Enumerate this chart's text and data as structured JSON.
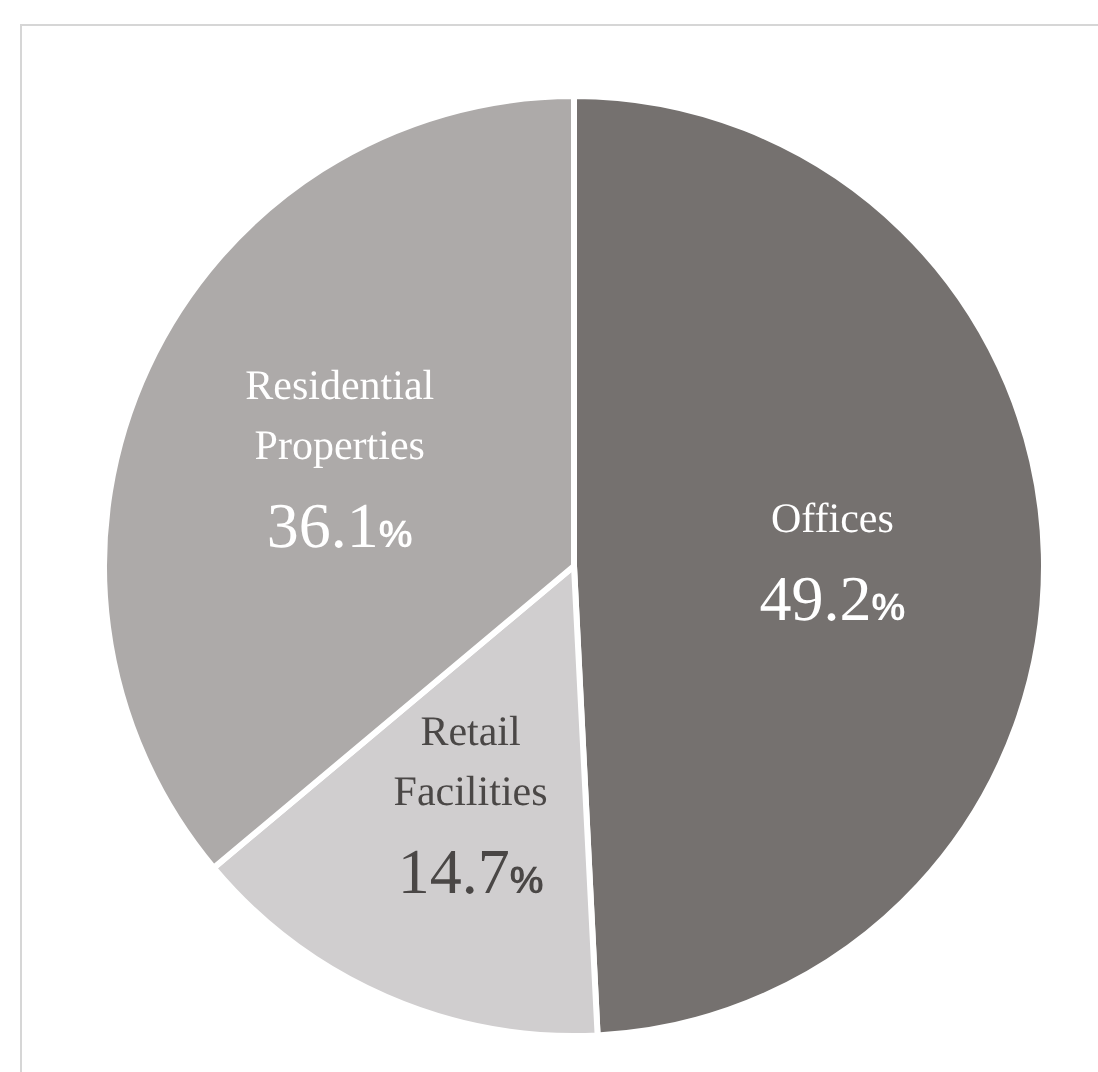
{
  "chart_data": {
    "type": "pie",
    "categories": [
      "Offices",
      "Retail Facilities",
      "Residential Properties"
    ],
    "values": [
      49.2,
      14.7,
      36.1
    ],
    "colors": [
      "#75716f",
      "#d0cecf",
      "#adaaa9"
    ],
    "value_labels": [
      "49.2%",
      "14.7%",
      "36.1%"
    ]
  }
}
